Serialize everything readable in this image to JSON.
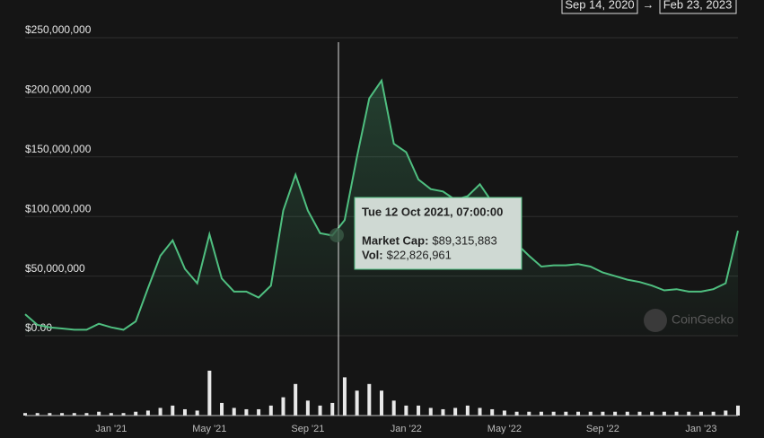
{
  "chart_data": {
    "type": "area",
    "color": "#4fbf80",
    "date_from": "Sep 14, 2020",
    "arrow": "→",
    "date_to": "Feb 23, 2023",
    "watermark": "CoinGecko",
    "ylim": [
      0,
      250000000
    ],
    "yticks": [
      {
        "value": 0,
        "label": "$0.00"
      },
      {
        "value": 50000000,
        "label": "$50,000,000"
      },
      {
        "value": 100000000,
        "label": "$100,000,000"
      },
      {
        "value": 150000000,
        "label": "$150,000,000"
      },
      {
        "value": 200000000,
        "label": "$200,000,000"
      },
      {
        "value": 250000000,
        "label": "$250,000,000"
      }
    ],
    "grid": true,
    "categories": [
      null,
      null,
      null,
      null,
      null,
      null,
      null,
      "Jan '21",
      null,
      null,
      null,
      null,
      null,
      null,
      null,
      "May '21",
      null,
      null,
      null,
      null,
      null,
      null,
      null,
      "Sep '21",
      null,
      null,
      null,
      null,
      null,
      null,
      null,
      "Jan '22",
      null,
      null,
      null,
      null,
      null,
      null,
      null,
      "May '22",
      null,
      null,
      null,
      null,
      null,
      null,
      null,
      "Sep '22",
      null,
      null,
      null,
      null,
      null,
      null,
      null,
      "Jan '23",
      null,
      null,
      null
    ],
    "values": [
      18000000,
      9000000,
      7000000,
      6000000,
      5000000,
      5000000,
      10000000,
      7000000,
      5000000,
      12000000,
      40000000,
      67000000,
      80000000,
      56000000,
      44000000,
      85000000,
      48000000,
      37000000,
      37000000,
      32000000,
      42000000,
      105000000,
      135000000,
      105000000,
      86000000,
      84000000,
      97000000,
      150000000,
      199000000,
      214000000,
      161000000,
      154000000,
      131000000,
      123000000,
      121000000,
      114000000,
      117000000,
      127000000,
      112000000,
      82000000,
      77000000,
      67000000,
      58000000,
      59000000,
      59000000,
      60000000,
      58000000,
      53000000,
      50000000,
      47000000,
      45000000,
      42000000,
      38000000,
      39000000,
      37000000,
      37000000,
      39000000,
      44000000,
      88000000
    ],
    "volume": [
      1500000,
      1500000,
      1500000,
      1500000,
      1500000,
      1500000,
      2300000,
      1500000,
      1500000,
      2300000,
      3000000,
      4600000,
      6000000,
      3800000,
      3000000,
      27000000,
      7600000,
      4600000,
      3800000,
      3800000,
      6000000,
      11000000,
      19000000,
      9000000,
      6000000,
      7600000,
      23000000,
      15000000,
      19000000,
      15000000,
      9000000,
      6000000,
      6000000,
      4600000,
      3800000,
      4600000,
      6000000,
      4600000,
      3800000,
      3000000,
      2300000,
      2300000,
      2300000,
      2300000,
      2300000,
      2300000,
      2300000,
      2300000,
      2300000,
      2300000,
      2300000,
      2300000,
      2300000,
      2300000,
      2300000,
      2300000,
      2300000,
      3000000,
      6000000
    ],
    "tooltip": {
      "date": "Tue 12 Oct 2021, 07:00:00",
      "cap_label": "Market Cap:",
      "cap_value": "$89,315,883",
      "vol_label": "Vol:",
      "vol_value": "$22,826,961"
    }
  }
}
